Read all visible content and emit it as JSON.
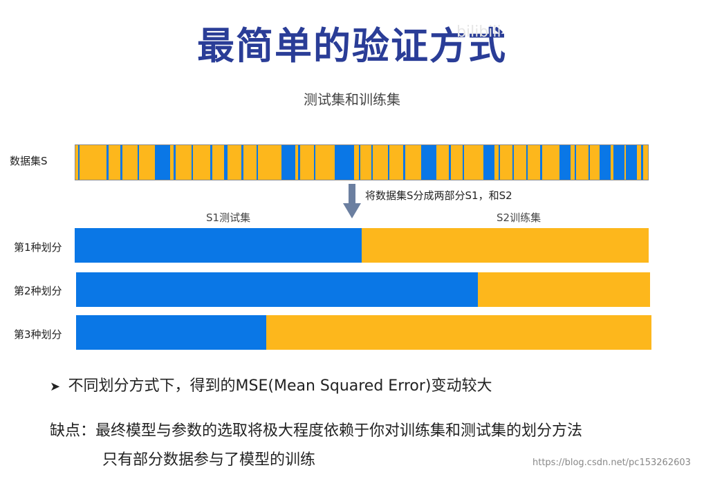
{
  "title": "最简单的验证方式",
  "watermark": "bilibili",
  "subtitle": "测试集和训练集",
  "dataset_label": "数据集S",
  "split_caption": "将数据集S分成两部分S1，和S2",
  "s1_label": "S1测试集",
  "s2_label": "S2训练集",
  "splits": [
    {
      "label": "第1种划分",
      "test_fraction": 0.5
    },
    {
      "label": "第2种划分",
      "test_fraction": 0.7
    },
    {
      "label": "第3种划分",
      "test_fraction": 0.33
    }
  ],
  "bullet": "不同划分方式下，得到的MSE(Mean Squared Error)变动较大",
  "drawback_line1": "缺点：最终模型与参数的选取将极大程度依赖于你对训练集和测试集的划分方法",
  "drawback_line2": "只有部分数据参与了模型的训练",
  "credit": "https://blog.csdn.net/pc153262603",
  "colors": {
    "title": "#2a3d97",
    "test": "#0a77e6",
    "train": "#fdb71c"
  }
}
